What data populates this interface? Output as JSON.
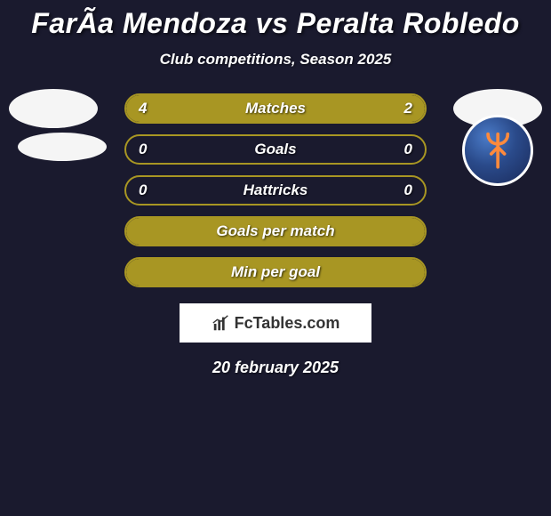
{
  "title": "FarÃ­a Mendoza vs Peralta Robledo",
  "subtitle": "Club competitions, Season 2025",
  "date": "20 february 2025",
  "brand": "FcTables.com",
  "colors": {
    "background": "#1a1a2e",
    "bar_fill": "#a89623",
    "bar_border": "#a89623",
    "text": "#ffffff"
  },
  "bars": [
    {
      "label": "Matches",
      "left_value": "4",
      "right_value": "2",
      "left_pct": 66.7,
      "right_pct": 33.3,
      "show_values": true,
      "show_avatars": "ellipses"
    },
    {
      "label": "Goals",
      "left_value": "0",
      "right_value": "0",
      "left_pct": 0,
      "right_pct": 0,
      "show_values": true,
      "show_avatars": "crest"
    },
    {
      "label": "Hattricks",
      "left_value": "0",
      "right_value": "0",
      "left_pct": 0,
      "right_pct": 0,
      "show_values": true,
      "show_avatars": "none"
    },
    {
      "label": "Goals per match",
      "left_value": "",
      "right_value": "",
      "left_pct": 100,
      "right_pct": 0,
      "show_values": false,
      "show_avatars": "none"
    },
    {
      "label": "Min per goal",
      "left_value": "",
      "right_value": "",
      "left_pct": 100,
      "right_pct": 0,
      "show_values": false,
      "show_avatars": "none"
    }
  ],
  "bar_style": {
    "track_width": 340,
    "track_height": 34,
    "border_radius": 17,
    "border_width": 2,
    "font_size": 17,
    "font_weight": 700,
    "font_style": "italic"
  }
}
